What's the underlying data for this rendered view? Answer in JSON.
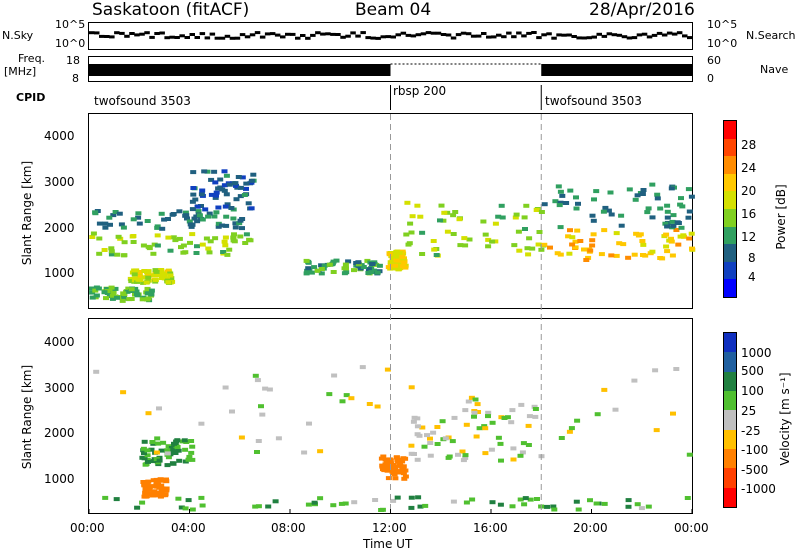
{
  "header": {
    "station": "Saskatoon (fitACF)",
    "beam": "Beam 04",
    "date": "28/Apr/2016"
  },
  "top_panels": {
    "nsky_label": "N.Sky",
    "nsky_ticks": [
      "10^5",
      "10^0"
    ],
    "nsearch_label": "N.Search",
    "nsearch_ticks": [
      "10^5",
      "10^0"
    ],
    "freq_label": "Freq.",
    "freq_unit": "[MHz]",
    "freq_ticks": [
      "18",
      "8"
    ],
    "nave_label": "Nave",
    "nave_ticks": [
      "60",
      "0"
    ],
    "cpid_label": "CPID",
    "cpid_segments": [
      {
        "label": "twofsound 3503",
        "start_h": 0,
        "end_h": 12
      },
      {
        "label": "rbsp 200",
        "start_h": 12,
        "end_h": 18
      },
      {
        "label": "twofsound 3503",
        "start_h": 18,
        "end_h": 24
      }
    ]
  },
  "power_panel": {
    "ylabel": "Slant Range [km]",
    "yticks": [
      "4000",
      "3000",
      "2000",
      "1000"
    ],
    "colorbar_label": "Power [dB]",
    "colorbar_ticks": [
      "28",
      "24",
      "20",
      "16",
      "12",
      "8",
      "4"
    ],
    "colors": [
      "#ff0000",
      "#ff4500",
      "#ff8c00",
      "#ffc800",
      "#d4e000",
      "#80d020",
      "#30a060",
      "#206080",
      "#1040c0",
      "#0000ff"
    ]
  },
  "velocity_panel": {
    "ylabel": "Slant Range [km]",
    "yticks": [
      "4000",
      "3000",
      "2000",
      "1000"
    ],
    "colorbar_label": "Velocity [m s⁻¹]",
    "colorbar_ticks": [
      "1000",
      "500",
      "100",
      "25",
      "-25",
      "-100",
      "-500",
      "-1000"
    ],
    "colors": [
      "#1030c0",
      "#2060a0",
      "#208040",
      "#50c030",
      "#c0c0c0",
      "#ffc000",
      "#ff8000",
      "#ff4000",
      "#ff0000"
    ]
  },
  "xaxis": {
    "label": "Time UT",
    "ticks": [
      "00:00",
      "04:00",
      "08:00",
      "12:00",
      "16:00",
      "20:00",
      "00:00"
    ]
  },
  "chart_data": [
    {
      "type": "heatmap",
      "title": "",
      "xlabel": "Time UT",
      "ylabel": "Slant Range [km]",
      "xlim": [
        0,
        24
      ],
      "ylim": [
        200,
        4500
      ],
      "colorbar": {
        "label": "Power [dB]",
        "range": [
          0,
          30
        ]
      },
      "regions": [
        {
          "x": [
            0,
            2.5
          ],
          "y": [
            400,
            700
          ],
          "value": 12
        },
        {
          "x": [
            1.5,
            3.2
          ],
          "y": [
            800,
            1100
          ],
          "value": 16
        },
        {
          "x": [
            0,
            6.5
          ],
          "y": [
            1400,
            1900
          ],
          "value": 14
        },
        {
          "x": [
            0,
            6
          ],
          "y": [
            2000,
            2400
          ],
          "value": 8
        },
        {
          "x": [
            4,
            6.5
          ],
          "y": [
            2400,
            3300
          ],
          "value": 6
        },
        {
          "x": [
            8.5,
            11.5
          ],
          "y": [
            1000,
            1300
          ],
          "value": 10
        },
        {
          "x": [
            11.8,
            12.5
          ],
          "y": [
            1100,
            1500
          ],
          "value": 18
        },
        {
          "x": [
            12.5,
            18
          ],
          "y": [
            1400,
            2600
          ],
          "value": 14
        },
        {
          "x": [
            18,
            24
          ],
          "y": [
            1300,
            2000
          ],
          "value": 20
        },
        {
          "x": [
            18,
            24
          ],
          "y": [
            2000,
            3000
          ],
          "value": 8
        }
      ]
    },
    {
      "type": "heatmap",
      "title": "",
      "xlabel": "Time UT",
      "ylabel": "Slant Range [km]",
      "xlim": [
        0,
        24
      ],
      "ylim": [
        200,
        4500
      ],
      "colorbar": {
        "label": "Velocity [m s⁻¹]",
        "range": [
          -1000,
          1000
        ]
      },
      "regions": [
        {
          "x": [
            0,
            24
          ],
          "y": [
            300,
            600
          ],
          "value": 80
        },
        {
          "x": [
            2,
            3
          ],
          "y": [
            600,
            1000
          ],
          "value": -300
        },
        {
          "x": [
            2,
            4
          ],
          "y": [
            1300,
            1900
          ],
          "value": 100
        },
        {
          "x": [
            11.5,
            12.5
          ],
          "y": [
            1000,
            1500
          ],
          "value": -400
        },
        {
          "x": [
            12.5,
            18
          ],
          "y": [
            1400,
            2600
          ],
          "value": 0
        },
        {
          "x": [
            0,
            24
          ],
          "y": [
            1500,
            3500
          ],
          "value": 0
        }
      ]
    }
  ]
}
